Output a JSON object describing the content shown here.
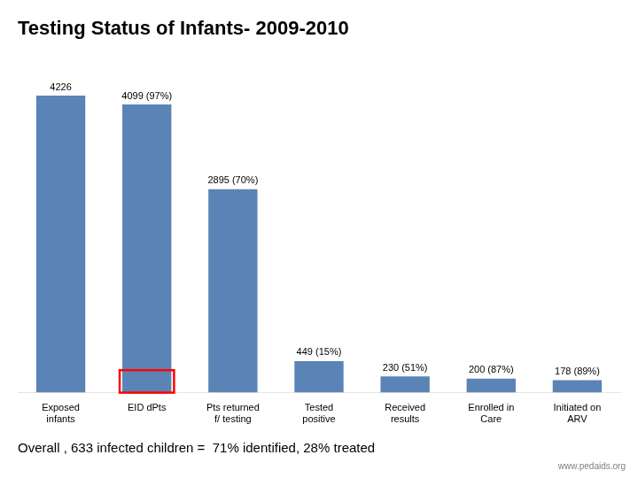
{
  "chart_data": {
    "type": "bar",
    "title": "Testing Status of Infants- 2009-2010",
    "categories": [
      "Exposed infants",
      "EID dPts",
      "Pts returned f/ testing",
      "Tested positive",
      "Received results",
      "Enrolled in Care",
      "Initiated on ARV"
    ],
    "values": [
      4226,
      4099,
      2895,
      449,
      230,
      200,
      178
    ],
    "value_labels": [
      "4226",
      "4099 (97%)",
      "2895 (70%)",
      "449 (15%)",
      "230 (51%)",
      "200 (87%)",
      "178 (89%)"
    ],
    "data_labels": true,
    "color": "#5b84b6",
    "ylim": [
      0,
      4700
    ],
    "grid": false,
    "tick_labels": "x",
    "highlight": {
      "category": "EID dPts",
      "height": 320,
      "color": "red"
    },
    "annotations": [
      "Overall , 633 infected children =  71% identified, 28% treated",
      "www.pedaids.org"
    ]
  }
}
